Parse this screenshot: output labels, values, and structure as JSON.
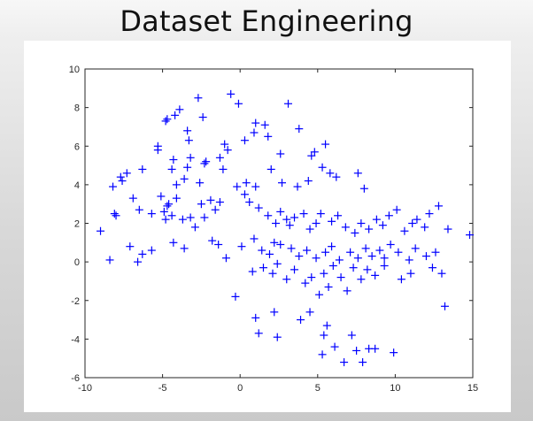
{
  "slide": {
    "title": "Dataset Engineering"
  },
  "chart_data": {
    "type": "scatter",
    "title": "",
    "xlabel": "",
    "ylabel": "",
    "xlim": [
      -10,
      15
    ],
    "ylim": [
      -6,
      10
    ],
    "grid": false,
    "marker": "+",
    "marker_color": "#0000ff",
    "axis_color": "#262626",
    "xticks": [
      -10,
      -5,
      0,
      5,
      10,
      15
    ],
    "yticks": [
      -6,
      -4,
      -2,
      0,
      2,
      4,
      6,
      8,
      10
    ],
    "x": [
      -4.8,
      -4.7,
      -4.2,
      -3.9,
      -3.4,
      -3.3,
      -2.7,
      -2.4,
      -1.0,
      -0.6,
      -0.1,
      1.0,
      1.6,
      3.1,
      3.8,
      -4.4,
      -5.3,
      -5.3,
      -4.1,
      -3.4,
      -3.2,
      -2.3,
      -2.2,
      -1.3,
      -0.8,
      0.3,
      0.9,
      1.8,
      2.6,
      4.6,
      4.8,
      5.5,
      -6.3,
      -7.3,
      -8.2,
      -7.7,
      -7.6,
      -4.3,
      -3.6,
      -2.6,
      -1.9,
      -1.1,
      0.4,
      1.0,
      2.0,
      2.7,
      3.7,
      4.4,
      5.3,
      5.8,
      6.2,
      7.6,
      8.0,
      -9.0,
      -8.1,
      -8.0,
      -6.9,
      -6.5,
      -5.7,
      -5.1,
      -4.9,
      -4.8,
      -4.7,
      -4.6,
      -4.4,
      -4.1,
      -3.7,
      -3.2,
      -2.9,
      -2.5,
      -2.3,
      -1.6,
      -1.3,
      -0.2,
      0.3,
      0.6,
      1.2,
      1.8,
      2.3,
      2.6,
      3.0,
      3.2,
      3.5,
      4.1,
      4.5,
      4.9,
      5.2,
      5.9,
      6.3,
      6.8,
      7.4,
      7.8,
      8.3,
      8.8,
      9.2,
      9.6,
      10.1,
      10.6,
      11.1,
      11.4,
      11.9,
      12.2,
      12.8,
      13.4,
      14.8,
      -8.4,
      -7.1,
      -6.6,
      -6.3,
      -5.7,
      -4.3,
      -3.6,
      -1.8,
      -1.4,
      -0.9,
      0.1,
      0.9,
      1.4,
      1.9,
      2.2,
      2.6,
      3.3,
      3.8,
      4.3,
      4.9,
      5.5,
      5.9,
      6.4,
      7.1,
      7.6,
      8.1,
      8.5,
      9.0,
      9.3,
      9.7,
      10.2,
      10.9,
      11.3,
      12.0,
      12.6,
      -0.3,
      0.8,
      1.5,
      2.1,
      2.4,
      3.0,
      3.5,
      4.2,
      4.6,
      5.1,
      5.4,
      5.7,
      6.0,
      6.5,
      6.9,
      7.3,
      7.8,
      8.2,
      8.7,
      9.3,
      10.4,
      11.0,
      12.4,
      13.0,
      13.2,
      1.0,
      1.2,
      2.2,
      2.4,
      3.9,
      4.5,
      5.3,
      5.4,
      5.6,
      6.1,
      6.7,
      7.2,
      7.5,
      7.9,
      8.3,
      8.7,
      9.9
    ],
    "y": [
      7.3,
      7.4,
      7.6,
      7.9,
      6.8,
      6.3,
      8.5,
      7.5,
      6.1,
      8.7,
      8.2,
      7.2,
      7.1,
      8.2,
      6.9,
      4.8,
      6.0,
      5.8,
      4.0,
      4.9,
      5.4,
      5.1,
      5.2,
      5.4,
      5.8,
      6.3,
      6.7,
      6.5,
      5.6,
      5.5,
      5.7,
      6.1,
      4.8,
      4.6,
      3.9,
      4.4,
      4.2,
      5.3,
      4.3,
      4.1,
      3.2,
      4.8,
      4.1,
      3.9,
      4.8,
      4.1,
      3.9,
      4.2,
      4.9,
      4.6,
      4.4,
      4.6,
      3.8,
      1.6,
      2.5,
      2.4,
      3.3,
      2.7,
      2.5,
      3.4,
      2.6,
      2.2,
      2.9,
      3.0,
      2.4,
      3.3,
      2.2,
      2.3,
      1.8,
      3.0,
      2.3,
      2.7,
      3.1,
      3.9,
      3.5,
      3.1,
      2.8,
      2.4,
      2.0,
      2.6,
      2.2,
      1.9,
      2.3,
      2.5,
      1.7,
      2.0,
      2.5,
      2.1,
      2.4,
      1.8,
      1.5,
      2.0,
      1.7,
      2.2,
      1.9,
      2.4,
      2.7,
      1.6,
      2.0,
      2.2,
      1.8,
      2.5,
      2.9,
      1.7,
      1.4,
      0.1,
      0.8,
      0.0,
      0.4,
      0.6,
      1.0,
      0.7,
      1.1,
      0.9,
      0.2,
      0.8,
      1.2,
      0.6,
      0.4,
      1.0,
      0.9,
      0.7,
      0.3,
      0.6,
      0.2,
      0.5,
      0.8,
      0.1,
      0.5,
      0.2,
      0.7,
      0.3,
      0.6,
      0.2,
      0.9,
      0.5,
      0.1,
      0.7,
      0.3,
      0.5,
      -1.8,
      -0.5,
      -0.3,
      -0.6,
      -0.1,
      -0.9,
      -0.4,
      -1.1,
      -0.8,
      -1.7,
      -0.6,
      -1.3,
      -0.2,
      -0.8,
      -1.5,
      -0.3,
      -0.9,
      -0.4,
      -0.7,
      -0.2,
      -0.9,
      -0.6,
      -0.3,
      -0.6,
      -2.3,
      -2.9,
      -3.7,
      -2.6,
      -3.9,
      -3.0,
      -2.6,
      -4.8,
      -3.8,
      -3.3,
      -4.4,
      -5.2,
      -3.8,
      -4.6,
      -5.2,
      -4.5,
      -4.5,
      -4.7
    ]
  }
}
